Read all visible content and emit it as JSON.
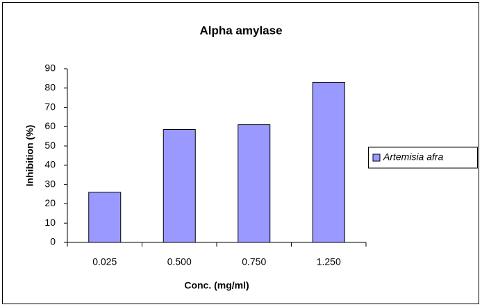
{
  "chart_data": {
    "type": "bar",
    "title": "Alpha amylase",
    "x_label": "Conc. (mg/ml)",
    "y_label": "Inhibition (%)",
    "categories": [
      "0.025",
      "0.500",
      "0.750",
      "1.250"
    ],
    "series": [
      {
        "name": "Artemisia afra",
        "color": "#9999ff",
        "values": [
          26,
          58.5,
          61,
          83
        ]
      }
    ],
    "ylim": [
      0,
      90
    ],
    "yticks": [
      0,
      10,
      20,
      30,
      40,
      50,
      60,
      70,
      80,
      90
    ],
    "legend": "right"
  }
}
